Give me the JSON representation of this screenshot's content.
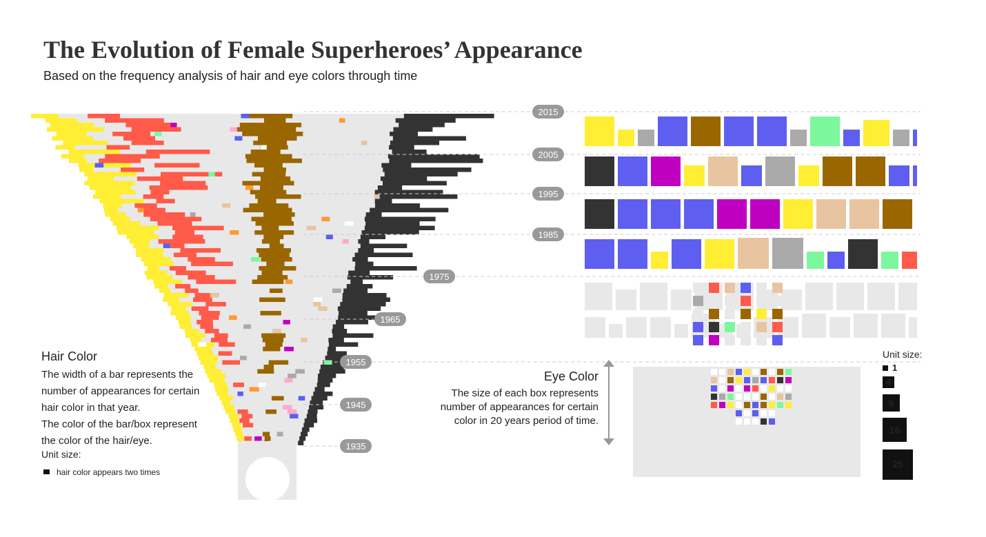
{
  "header": {
    "title": "The Evolution of Female Superheroes’ Appearance",
    "subtitle": "Based on the frequency analysis of hair and eye colors through time"
  },
  "years": [
    "2015",
    "2005",
    "1995",
    "1985",
    "1975",
    "1965",
    "1955",
    "1945",
    "1935"
  ],
  "hair_legend": {
    "title": "Hair Color",
    "lines": [
      "The width of a bar represents the",
      "number of appearances for certain",
      "hair color in that year.",
      "The color of the bar/box represent",
      "the color of the hair/eye."
    ],
    "unit_title": "Unit size:",
    "unit_note": "hair color appears two times"
  },
  "eye_legend": {
    "title": "Eye Color",
    "lines": [
      "The size of each box represents",
      "number of appearances for certain",
      "color in 20 years period of time."
    ]
  },
  "unit_size": {
    "title": "Unit size:",
    "boxes": [
      "1",
      "4",
      "9",
      "16",
      "25"
    ]
  }
}
